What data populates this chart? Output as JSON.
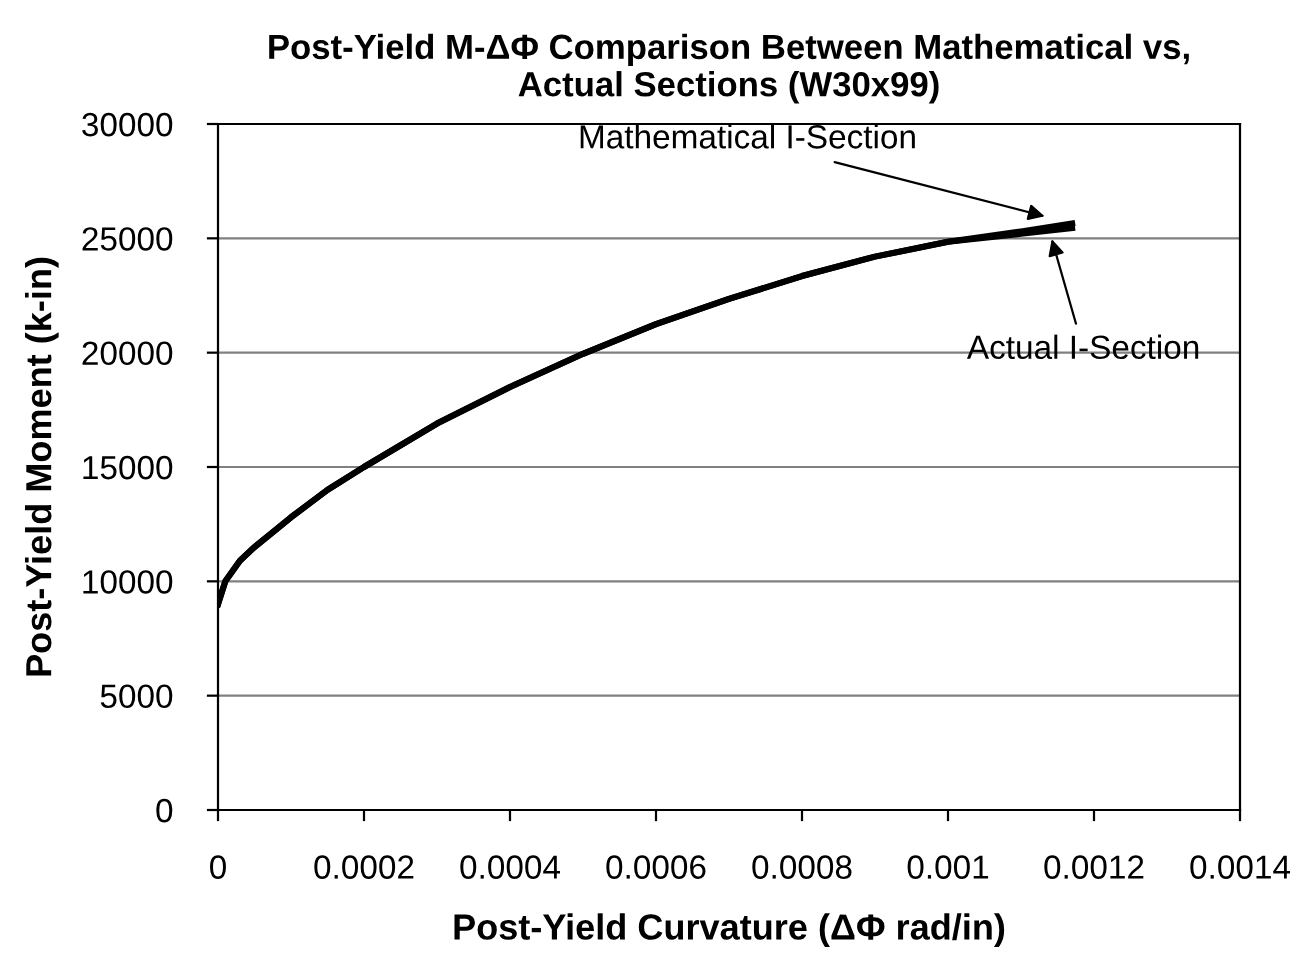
{
  "chart_data": {
    "type": "line",
    "title": "Post-Yield M-ΔΦ Comparison Between Mathematical vs,\nActual Sections (W30x99)",
    "xlabel": "Post-Yield Curvature (ΔΦ rad/in)",
    "ylabel": "Post-Yield Moment (k-in)",
    "series": [
      {
        "name": "Mathematical I-Section",
        "color": "#000000",
        "x": [
          0,
          1e-05,
          3e-05,
          5e-05,
          0.0001,
          0.00015,
          0.0002,
          0.0003,
          0.0004,
          0.0005,
          0.0006,
          0.0007,
          0.0008,
          0.0009,
          0.001,
          0.0011,
          0.00117
        ],
        "values": [
          9000,
          10000,
          10900,
          11500,
          12800,
          14000,
          15000,
          16900,
          18500,
          19950,
          21250,
          22350,
          23350,
          24200,
          24850,
          25300,
          25650
        ]
      },
      {
        "name": "Actual I-Section",
        "color": "#000000",
        "x": [
          0,
          1e-05,
          3e-05,
          5e-05,
          0.0001,
          0.00015,
          0.0002,
          0.0003,
          0.0004,
          0.0005,
          0.0006,
          0.0007,
          0.0008,
          0.0009,
          0.001,
          0.0011,
          0.00117
        ],
        "values": [
          9000,
          10000,
          10900,
          11500,
          12800,
          14000,
          15000,
          16900,
          18500,
          19950,
          21250,
          22350,
          23350,
          24200,
          24850,
          25200,
          25450
        ]
      }
    ],
    "xlim": [
      0,
      0.0014
    ],
    "xticks": [
      0,
      0.0002,
      0.0004,
      0.0006,
      0.0008,
      0.001,
      0.0012,
      0.0014
    ],
    "ylim": [
      0,
      30000
    ],
    "yticks": [
      0,
      5000,
      10000,
      15000,
      20000,
      25000,
      30000
    ],
    "grid": "y",
    "legend": false,
    "marker": "none",
    "line_style": "solid"
  }
}
